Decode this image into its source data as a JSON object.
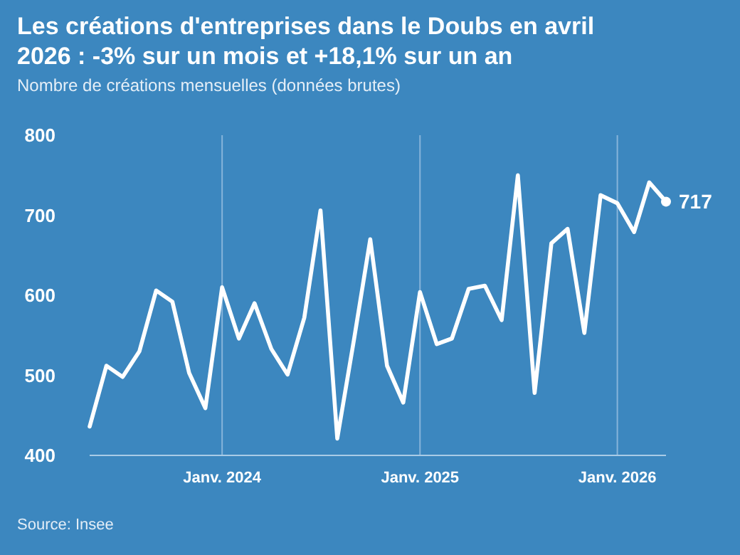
{
  "chart_data": {
    "type": "line",
    "title": "Les créations d'entreprises dans le Doubs en avril 2026 : -3% sur un mois et +18,1% sur un an",
    "subtitle": "Nombre de créations mensuelles (données brutes)",
    "x": [
      "2023-05",
      "2023-06",
      "2023-07",
      "2023-08",
      "2023-09",
      "2023-10",
      "2023-11",
      "2023-12",
      "2024-01",
      "2024-02",
      "2024-03",
      "2024-04",
      "2024-05",
      "2024-06",
      "2024-07",
      "2024-08",
      "2024-09",
      "2024-10",
      "2024-11",
      "2024-12",
      "2025-01",
      "2025-02",
      "2025-03",
      "2025-04",
      "2025-05",
      "2025-06",
      "2025-07",
      "2025-08",
      "2025-09",
      "2025-10",
      "2025-11",
      "2025-12",
      "2026-01",
      "2026-02",
      "2026-03",
      "2026-04"
    ],
    "series": [
      {
        "color": "#ffffff",
        "values": [
          436,
          512,
          498,
          530,
          606,
          592,
          503,
          459,
          610,
          546,
          590,
          533,
          501,
          572,
          706,
          421,
          545,
          670,
          512,
          466,
          604,
          539,
          546,
          608,
          612,
          569,
          750,
          478,
          665,
          683,
          553,
          725,
          715,
          679,
          741,
          717
        ]
      }
    ],
    "xticks": [
      {
        "value": "2024-01",
        "label": "Janv. 2024"
      },
      {
        "value": "2025-01",
        "label": "Janv. 2025"
      },
      {
        "value": "2026-01",
        "label": "Janv. 2026"
      }
    ],
    "xlim": [
      "2023-05",
      "2026-04"
    ],
    "ylim": [
      400,
      800
    ],
    "yticks": [
      400,
      500,
      600,
      700,
      800
    ],
    "grid": "x",
    "marker": "none",
    "line_style": "solid",
    "annotations": [
      {
        "text": "717",
        "x": "2026-04",
        "y": 717
      },
      "Source: Insee"
    ]
  }
}
